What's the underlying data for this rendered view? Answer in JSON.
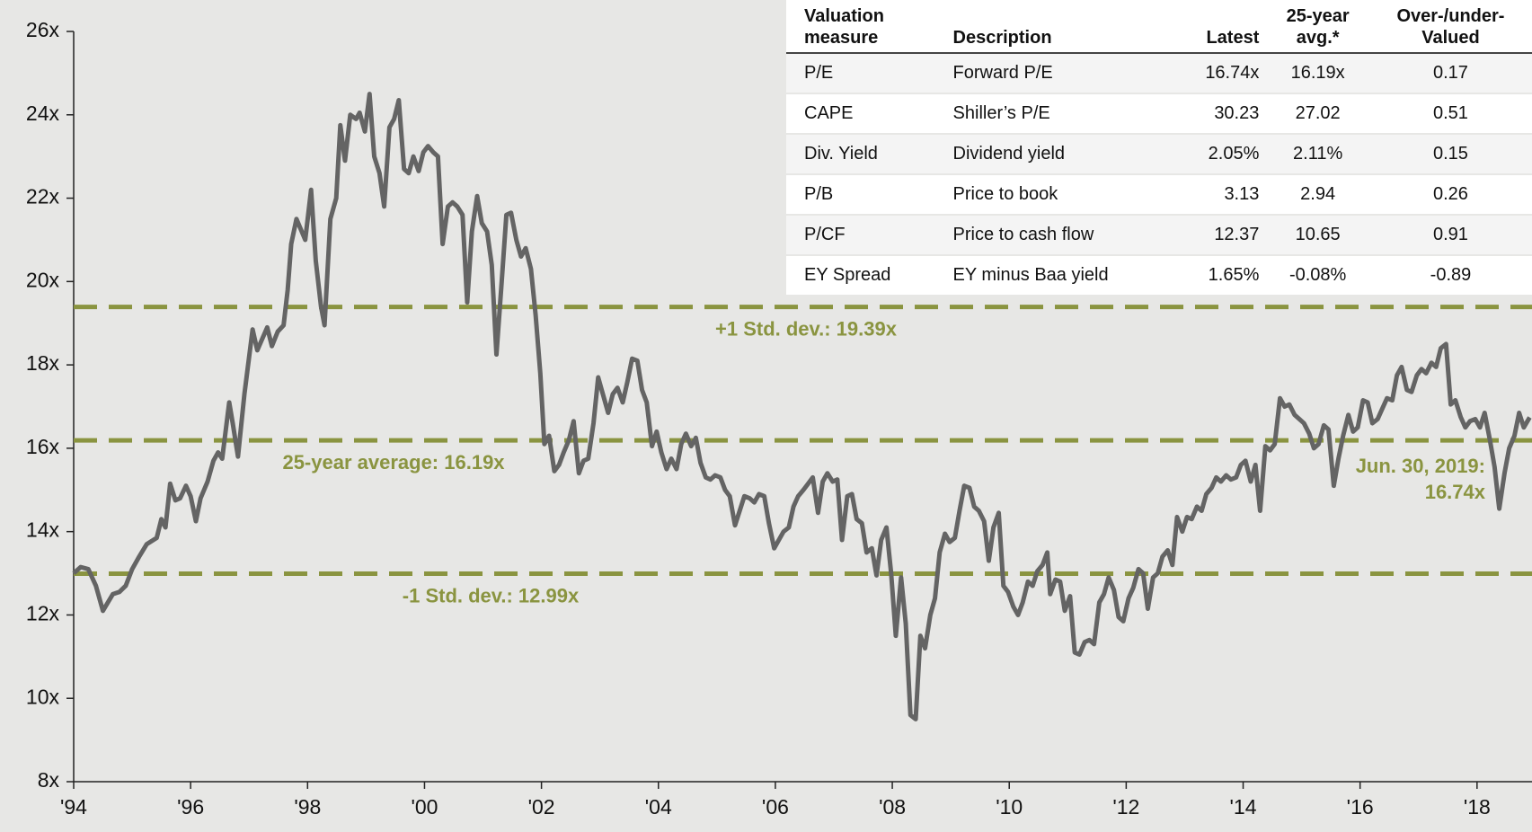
{
  "chart_data": {
    "type": "line",
    "series": [
      {
        "name": "Forward P/E",
        "color": "#646464",
        "x": [
          1994.0,
          1994.12,
          1994.25,
          1994.38,
          1994.5,
          1994.67,
          1994.78,
          1994.89,
          1995.0,
          1995.12,
          1995.25,
          1995.42,
          1995.5,
          1995.57,
          1995.65,
          1995.74,
          1995.82,
          1995.92,
          1996.0,
          1996.09,
          1996.17,
          1996.29,
          1996.39,
          1996.47,
          1996.54,
          1996.66,
          1996.72,
          1996.81,
          1996.92,
          1997.06,
          1997.14,
          1997.31,
          1997.39,
          1997.49,
          1997.59,
          1997.66,
          1997.72,
          1997.81,
          1997.96,
          1998.06,
          1998.14,
          1998.23,
          1998.29,
          1998.39,
          1998.49,
          1998.56,
          1998.64,
          1998.73,
          1998.83,
          1998.89,
          1998.98,
          1999.06,
          1999.14,
          1999.23,
          1999.31,
          1999.4,
          1999.48,
          1999.56,
          1999.65,
          1999.73,
          1999.81,
          1999.9,
          1999.98,
          2000.06,
          2000.15,
          2000.23,
          2000.31,
          2000.4,
          2000.48,
          2000.56,
          2000.65,
          2000.73,
          2000.81,
          2000.9,
          2000.98,
          2001.07,
          2001.15,
          2001.23,
          2001.32,
          2001.4,
          2001.48,
          2001.57,
          2001.65,
          2001.73,
          2001.82,
          2001.9,
          2001.98,
          2002.05,
          2002.13,
          2002.22,
          2002.3,
          2002.38,
          2002.47,
          2002.55,
          2002.64,
          2002.72,
          2002.8,
          2002.89,
          2002.97,
          2003.05,
          2003.14,
          2003.22,
          2003.3,
          2003.39,
          2003.47,
          2003.55,
          2003.64,
          2003.72,
          2003.8,
          2003.89,
          2003.97,
          2004.05,
          2004.14,
          2004.22,
          2004.31,
          2004.39,
          2004.47,
          2004.56,
          2004.64,
          2004.72,
          2004.81,
          2004.89,
          2004.97,
          2005.06,
          2005.14,
          2005.22,
          2005.31,
          2005.39,
          2005.47,
          2005.56,
          2005.64,
          2005.72,
          2005.81,
          2005.89,
          2005.98,
          2006.06,
          2006.14,
          2006.23,
          2006.31,
          2006.39,
          2006.48,
          2006.56,
          2006.64,
          2006.73,
          2006.81,
          2006.89,
          2006.98,
          2007.06,
          2007.14,
          2007.23,
          2007.31,
          2007.39,
          2007.48,
          2007.56,
          2007.65,
          2007.73,
          2007.81,
          2007.9,
          2007.98,
          2008.06,
          2008.15,
          2008.23,
          2008.31,
          2008.4,
          2008.48,
          2008.56,
          2008.65,
          2008.73,
          2008.81,
          2008.9,
          2008.98,
          2009.07,
          2009.15,
          2009.23,
          2009.32,
          2009.4,
          2009.48,
          2009.57,
          2009.65,
          2009.73,
          2009.82,
          2009.9,
          2009.98,
          2010.07,
          2010.15,
          2010.23,
          2010.32,
          2010.4,
          2010.48,
          2010.57,
          2010.65,
          2010.7,
          2010.79,
          2010.87,
          2010.95,
          2011.04,
          2011.12,
          2011.2,
          2011.29,
          2011.37,
          2011.45,
          2011.54,
          2011.62,
          2011.7,
          2011.79,
          2011.87,
          2011.95,
          2012.04,
          2012.12,
          2012.21,
          2012.29,
          2012.37,
          2012.46,
          2012.54,
          2012.62,
          2012.71,
          2012.79,
          2012.87,
          2012.96,
          2013.04,
          2013.12,
          2013.21,
          2013.29,
          2013.37,
          2013.46,
          2013.54,
          2013.62,
          2013.71,
          2013.79,
          2013.88,
          2013.96,
          2014.04,
          2014.13,
          2014.21,
          2014.29,
          2014.38,
          2014.46,
          2014.54,
          2014.63,
          2014.71,
          2014.79,
          2014.88,
          2014.96,
          2015.04,
          2015.13,
          2015.21,
          2015.29,
          2015.38,
          2015.46,
          2015.55,
          2015.63,
          2015.71,
          2015.8,
          2015.88,
          2015.96,
          2016.05,
          2016.13,
          2016.21,
          2016.3,
          2016.38,
          2016.46,
          2016.55,
          2016.63,
          2016.71,
          2016.8,
          2016.88,
          2016.97,
          2017.05,
          2017.13,
          2017.22,
          2017.3,
          2017.38,
          2017.47,
          2017.55,
          2017.63,
          2017.72,
          2017.8,
          2017.88,
          2017.97,
          2018.05,
          2018.13,
          2018.22,
          2018.3,
          2018.38,
          2018.47,
          2018.55,
          2018.64,
          2018.72,
          2018.8,
          2018.9
        ],
        "values": [
          13.0,
          13.15,
          13.1,
          12.7,
          12.1,
          12.5,
          12.55,
          12.7,
          13.1,
          13.4,
          13.7,
          13.85,
          14.3,
          14.1,
          15.15,
          14.75,
          14.8,
          15.1,
          14.85,
          14.25,
          14.8,
          15.2,
          15.7,
          15.9,
          15.75,
          17.1,
          16.6,
          15.8,
          17.3,
          18.85,
          18.35,
          18.9,
          18.45,
          18.8,
          18.95,
          19.8,
          20.9,
          21.5,
          21.0,
          22.2,
          20.5,
          19.4,
          18.95,
          21.5,
          22.0,
          23.75,
          22.9,
          24.0,
          23.9,
          24.05,
          23.6,
          24.5,
          23.0,
          22.6,
          21.8,
          23.7,
          23.9,
          24.35,
          22.7,
          22.6,
          23.0,
          22.65,
          23.1,
          23.25,
          23.1,
          23.0,
          20.9,
          21.8,
          21.9,
          21.8,
          21.6,
          19.5,
          21.2,
          22.05,
          21.4,
          21.2,
          20.4,
          18.25,
          20.0,
          21.6,
          21.65,
          21.0,
          20.6,
          20.8,
          20.3,
          19.2,
          17.8,
          16.1,
          16.3,
          15.45,
          15.6,
          15.9,
          16.2,
          16.65,
          15.4,
          15.7,
          15.75,
          16.6,
          17.7,
          17.3,
          16.85,
          17.3,
          17.45,
          17.1,
          17.6,
          18.15,
          18.1,
          17.4,
          17.1,
          16.05,
          16.4,
          15.9,
          15.5,
          15.75,
          15.5,
          16.1,
          16.35,
          16.05,
          16.25,
          15.65,
          15.3,
          15.25,
          15.35,
          15.3,
          15.0,
          14.85,
          14.15,
          14.5,
          14.85,
          14.8,
          14.7,
          14.9,
          14.85,
          14.2,
          13.6,
          13.8,
          14.0,
          14.1,
          14.6,
          14.85,
          15.0,
          15.15,
          15.3,
          14.45,
          15.2,
          15.4,
          15.2,
          15.25,
          13.8,
          14.85,
          14.9,
          14.3,
          14.2,
          13.5,
          13.6,
          12.95,
          13.8,
          14.1,
          13.0,
          11.5,
          12.9,
          11.8,
          9.6,
          9.5,
          11.5,
          11.2,
          12.0,
          12.4,
          13.5,
          13.95,
          13.75,
          13.85,
          14.5,
          15.1,
          15.05,
          14.6,
          14.5,
          14.25,
          13.3,
          14.1,
          14.45,
          12.7,
          12.55,
          12.2,
          12.0,
          12.3,
          12.8,
          12.7,
          13.05,
          13.2,
          13.5,
          12.5,
          12.85,
          12.8,
          12.1,
          12.45,
          11.1,
          11.05,
          11.35,
          11.4,
          11.3,
          12.3,
          12.5,
          12.9,
          12.6,
          11.95,
          11.85,
          12.4,
          12.65,
          13.1,
          13.0,
          12.15,
          12.9,
          13.0,
          13.4,
          13.55,
          13.2,
          14.35,
          14.0,
          14.35,
          14.3,
          14.6,
          14.5,
          14.9,
          15.05,
          15.3,
          15.2,
          15.35,
          15.25,
          15.3,
          15.6,
          15.7,
          15.2,
          15.6,
          14.5,
          16.05,
          15.95,
          16.1,
          17.2,
          17.0,
          17.05,
          16.8,
          16.7,
          16.6,
          16.35,
          16.0,
          16.1,
          16.55,
          16.45,
          15.1,
          15.75,
          16.3,
          16.8,
          16.4,
          16.5,
          17.15,
          17.1,
          16.6,
          16.7,
          16.95,
          17.2,
          17.15,
          17.75,
          17.95,
          17.4,
          17.35,
          17.75,
          17.9,
          17.8,
          18.05,
          17.95,
          18.4,
          18.5,
          17.05,
          17.15,
          16.75,
          16.5,
          16.65,
          16.7,
          16.5,
          16.85,
          16.2,
          15.55,
          14.55,
          15.4,
          16.0,
          16.3,
          16.85,
          16.5,
          16.74
        ]
      }
    ],
    "xlim": [
      1994,
      2018.94
    ],
    "xticks": [
      {
        "value": 1994,
        "label": "'94"
      },
      {
        "value": 1996,
        "label": "'96"
      },
      {
        "value": 1998,
        "label": "'98"
      },
      {
        "value": 2000,
        "label": "'00"
      },
      {
        "value": 2002,
        "label": "'02"
      },
      {
        "value": 2004,
        "label": "'04"
      },
      {
        "value": 2006,
        "label": "'06"
      },
      {
        "value": 2008,
        "label": "'08"
      },
      {
        "value": 2010,
        "label": "'10"
      },
      {
        "value": 2012,
        "label": "'12"
      },
      {
        "value": 2014,
        "label": "'14"
      },
      {
        "value": 2016,
        "label": "'16"
      },
      {
        "value": 2018,
        "label": "'18"
      }
    ],
    "ylim": [
      8,
      26
    ],
    "yticks": [
      {
        "value": 8,
        "label": "8x"
      },
      {
        "value": 10,
        "label": "10x"
      },
      {
        "value": 12,
        "label": "12x"
      },
      {
        "value": 14,
        "label": "14x"
      },
      {
        "value": 16,
        "label": "16x"
      },
      {
        "value": 18,
        "label": "18x"
      },
      {
        "value": 20,
        "label": "20x"
      },
      {
        "value": 22,
        "label": "22x"
      },
      {
        "value": 24,
        "label": "24x"
      },
      {
        "value": 26,
        "label": "26x"
      }
    ],
    "reference_lines": [
      {
        "value": 19.39,
        "label": "+1 Std. dev.: 19.39x",
        "color": "#8a9440"
      },
      {
        "value": 16.19,
        "label": "25-year average: 16.19x",
        "color": "#8a9440"
      },
      {
        "value": 12.99,
        "label": "-1 Std. dev.: 12.99x",
        "color": "#8a9440"
      }
    ],
    "annotation": [
      "Jun. 30, 2019:",
      "16.74x"
    ],
    "table": {
      "header": [
        [
          "Valuation",
          "measure"
        ],
        [
          "Description"
        ],
        [
          "Latest"
        ],
        [
          "25-year",
          "avg.*"
        ],
        [
          "Over-/under-",
          "Valued"
        ]
      ],
      "rows": [
        [
          "P/E",
          "Forward P/E",
          "16.74x",
          "16.19x",
          "0.17"
        ],
        [
          "CAPE",
          "Shiller’s P/E",
          "30.23",
          "27.02",
          "0.51"
        ],
        [
          "Div. Yield",
          "Dividend yield",
          "2.05%",
          "2.11%",
          "0.15"
        ],
        [
          "P/B",
          "Price to book",
          "3.13",
          "2.94",
          "0.26"
        ],
        [
          "P/CF",
          "Price to cash flow",
          "12.37",
          "10.65",
          "0.91"
        ],
        [
          "EY Spread",
          "EY minus Baa yield",
          "1.65%",
          "-0.08%",
          "-0.89"
        ]
      ]
    }
  }
}
